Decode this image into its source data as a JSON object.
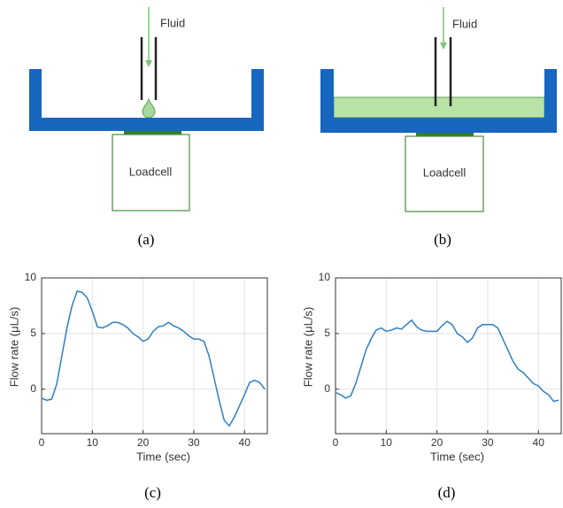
{
  "diagrams": [
    {
      "fluid": "Fluid",
      "loadcell": "Loadcell",
      "caption": "(a)"
    },
    {
      "fluid": "Fluid",
      "loadcell": "Loadcell",
      "caption": "(b)"
    }
  ],
  "chart_data": [
    {
      "type": "line",
      "caption": "(c)",
      "x_label": "Time (sec)",
      "y_label": "Flow rate (μL/s)",
      "x": [
        0,
        1,
        2,
        3,
        4,
        5,
        6,
        7,
        8,
        9,
        10,
        11,
        12,
        13,
        14,
        15,
        16,
        17,
        18,
        19,
        20,
        21,
        22,
        23,
        24,
        25,
        26,
        27,
        28,
        29,
        30,
        31,
        32,
        33,
        34,
        35,
        36,
        37,
        38,
        39,
        40,
        41,
        42,
        43,
        44
      ],
      "values": [
        -0.8,
        -1,
        -0.9,
        0.5,
        3,
        5.5,
        7.5,
        8.8,
        8.7,
        8.2,
        7,
        5.6,
        5.5,
        5.7,
        6,
        6,
        5.8,
        5.5,
        5,
        4.7,
        4.3,
        4.5,
        5.2,
        5.6,
        5.7,
        6,
        5.7,
        5.5,
        5.2,
        4.8,
        4.5,
        4.5,
        4.3,
        3,
        1,
        -1,
        -2.8,
        -3.3,
        -2.5,
        -1.5,
        -0.5,
        0.6,
        0.8,
        0.6,
        0
      ],
      "color": "#2f7fc1",
      "xlim": [
        0,
        44.5
      ],
      "ylim": [
        -4,
        10
      ],
      "xticks": [
        0,
        10,
        20,
        30,
        40
      ],
      "yticks": [
        0,
        5,
        10
      ],
      "grid": true
    },
    {
      "type": "line",
      "caption": "(d)",
      "x_label": "Time (sec)",
      "y_label": "Flow rate (μL/s)",
      "x": [
        0,
        1,
        2,
        3,
        4,
        5,
        6,
        7,
        8,
        9,
        10,
        11,
        12,
        13,
        14,
        15,
        16,
        17,
        18,
        19,
        20,
        21,
        22,
        23,
        24,
        25,
        26,
        27,
        28,
        29,
        30,
        31,
        32,
        33,
        34,
        35,
        36,
        37,
        38,
        39,
        40,
        41,
        42,
        43,
        44
      ],
      "values": [
        -0.3,
        -0.5,
        -0.8,
        -0.6,
        0.5,
        2,
        3.5,
        4.5,
        5.3,
        5.5,
        5.2,
        5.3,
        5.5,
        5.4,
        5.8,
        6.2,
        5.6,
        5.3,
        5.2,
        5.2,
        5.2,
        5.7,
        6.1,
        5.8,
        5,
        4.7,
        4.2,
        4.6,
        5.5,
        5.8,
        5.8,
        5.8,
        5.5,
        4.5,
        3.5,
        2.5,
        1.8,
        1.5,
        1,
        0.5,
        0.3,
        -0.2,
        -0.5,
        -1.1,
        -1
      ],
      "color": "#2f7fc1",
      "xlim": [
        0,
        44.5
      ],
      "ylim": [
        -4,
        10
      ],
      "xticks": [
        0,
        10,
        20,
        30,
        40
      ],
      "yticks": [
        0,
        5,
        10
      ],
      "grid": true
    }
  ]
}
